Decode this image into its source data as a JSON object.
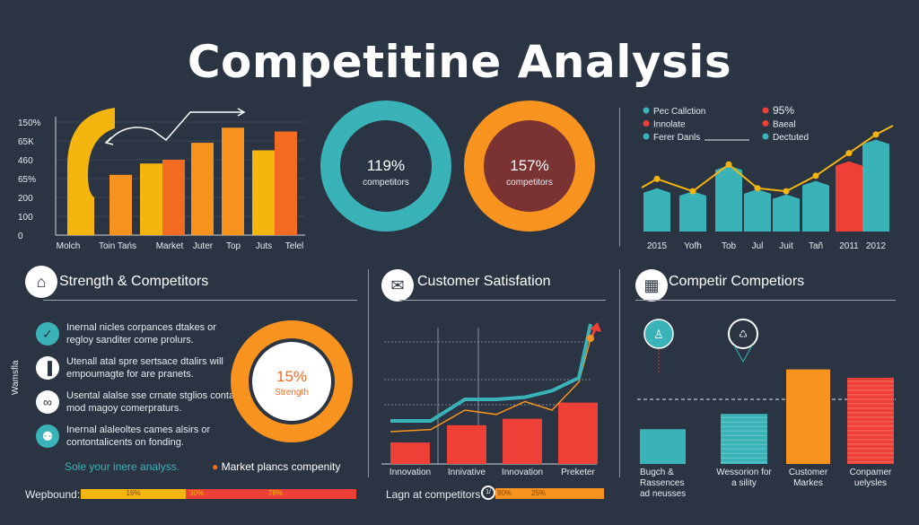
{
  "title": "Competitine Analysis",
  "colors": {
    "bg": "#2a3443",
    "yellow": "#f5b50f",
    "orange": "#f7931e",
    "dark_orange": "#f26b21",
    "teal": "#3ab3b8",
    "red": "#ee4036",
    "maroon": "#7a3232"
  },
  "chart_data": [
    {
      "type": "bar",
      "yticks": [
        "0",
        "100",
        "200",
        "65%",
        "460",
        "65K",
        "150%"
      ],
      "categories": [
        "Molch",
        "Toin Tańs",
        "Market",
        "Juter",
        "Top",
        "Juts",
        "Telel"
      ],
      "bars": [
        {
          "value": 3.2,
          "color": "orange"
        },
        {
          "value": 3.8,
          "color": "yellow"
        },
        {
          "value": 4.0,
          "color": "dark_orange"
        },
        {
          "value": 4.9,
          "color": "orange"
        },
        {
          "value": 5.7,
          "color": "orange"
        },
        {
          "value": 4.5,
          "color": "yellow"
        },
        {
          "value": 5.5,
          "color": "dark_orange"
        }
      ]
    },
    {
      "type": "donut",
      "value_label": "119%",
      "label": "competitors",
      "color": "teal"
    },
    {
      "type": "donut",
      "value_label": "157%",
      "label": "competitors",
      "color": "orange"
    },
    {
      "type": "bar",
      "categories": [
        "2015",
        "Yofh",
        "Tob",
        "Jul",
        "Juit",
        "Tañ",
        "2011",
        "2012"
      ],
      "values": [
        4.2,
        3.9,
        6.4,
        4.1,
        3.6,
        4.9,
        6.8,
        8.9
      ],
      "highlight_index": 6,
      "line": [
        5.1,
        3.9,
        6.5,
        4.2,
        3.9,
        5.4,
        7.6,
        9.4
      ],
      "legend": [
        {
          "label": "Pec Callction",
          "color": "teal"
        },
        {
          "label": "Innolate",
          "color": "red"
        },
        {
          "label": "Ferer Danls",
          "color": "teal"
        },
        {
          "label": "95%",
          "color": "red"
        },
        {
          "label": "Baeal",
          "color": "red"
        },
        {
          "label": "Dectuted",
          "color": "teal"
        }
      ]
    },
    {
      "type": "bar",
      "categories": [
        "Innovation",
        "Innivative",
        "Innovation",
        "Preketer"
      ],
      "values": [
        2,
        3.6,
        4.2,
        5.7
      ],
      "line_teal": [
        4,
        4,
        6,
        6,
        6.2,
        6.8,
        8,
        13
      ],
      "line_orange": [
        3,
        3.2,
        5,
        4.6,
        5.8,
        5,
        7.6,
        11.6
      ]
    },
    {
      "type": "bar",
      "categories": [
        "Bugch & Rassences ad neusses",
        "Wessorion for a sility",
        "Customer Markes",
        "Conpamer uelysles"
      ],
      "values": [
        2.5,
        3.6,
        6.8,
        6.2
      ],
      "colors": [
        "teal",
        "teal",
        "orange",
        "red"
      ],
      "reference_line": 4.0
    }
  ],
  "strength": {
    "title": "Strength & Competitors",
    "side_label": "Wamsfla",
    "items": [
      {
        "icon": "check-icon",
        "text": "Inernal nicles corpances dtakes or regloy sanditer come prolurs."
      },
      {
        "icon": "chart-icon",
        "text": "Utenall atal spre sertsace dtalirs will empoumagte for are pranets."
      },
      {
        "icon": "link-icon",
        "text": "Usental alalse sse crnate stglios conta mod magoy comerpraturs."
      },
      {
        "icon": "person-icon",
        "text": "Inernal alaleoltes cames alsirs or contontalicents on fonding."
      }
    ],
    "donut_value": "15%",
    "donut_label": "Strength",
    "footer_left": "Sole your inere analyss.",
    "footer_right": "Market plancs compenity",
    "bar_label": "Wepbound:",
    "bar_segments": [
      {
        "label": "16%",
        "color": "yellow"
      },
      {
        "label": "30%",
        "color": "red"
      },
      {
        "label": "78%",
        "color": "red"
      }
    ]
  },
  "satisfaction": {
    "title": "Customer Satisfation",
    "bar_label": "Lagn at competitors",
    "badge": "1/",
    "segments": [
      "90%",
      "25%"
    ]
  },
  "competitors": {
    "title": "Competir Competiors"
  }
}
